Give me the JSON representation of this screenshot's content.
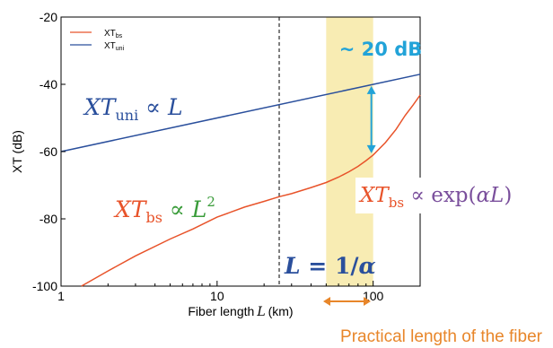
{
  "chart_data": {
    "type": "line",
    "x_scale": "log",
    "xlim": [
      1,
      200
    ],
    "ylim": [
      -100,
      -20
    ],
    "x_ticks": [
      "1",
      "10",
      "100"
    ],
    "y_ticks": [
      "-20",
      "-40",
      "-60",
      "-80",
      "-100"
    ],
    "xlabel": "Fiber length",
    "xlabel_var": "L",
    "xlabel_unit": "(km)",
    "ylabel": "XT (dB)",
    "legend": {
      "placement": "top-left",
      "entries": [
        {
          "base": "XT",
          "sub": "bs",
          "color": "#e8532a"
        },
        {
          "base": "XT",
          "sub": "uni",
          "color": "#2a4f9c"
        }
      ]
    },
    "series": [
      {
        "name": "XT_bs",
        "color": "#e8532a",
        "x": [
          1.35,
          2,
          3,
          5,
          7,
          10,
          15,
          20,
          25,
          30,
          40,
          50,
          60,
          70,
          80,
          90,
          100,
          120,
          140,
          160,
          180,
          200
        ],
        "y": [
          -100,
          -95.5,
          -91,
          -86,
          -83,
          -79.5,
          -76.5,
          -74.8,
          -73.4,
          -72.5,
          -70.7,
          -69.2,
          -67.6,
          -66.0,
          -64.4,
          -62.7,
          -61.0,
          -57.3,
          -53.4,
          -49.3,
          -46.2,
          -43.2
        ]
      },
      {
        "name": "XT_uni",
        "color": "#2a4f9c",
        "x": [
          1,
          200
        ],
        "y": [
          -60,
          -37
        ]
      }
    ],
    "vline": {
      "x": 25,
      "style": "dashed"
    },
    "shaded_band": {
      "x0": 50,
      "x1": 100,
      "color": "#f8ecb3"
    },
    "gap_arrow": {
      "x": 100,
      "y_top": -40.5,
      "y_bottom": -60.5,
      "color": "#22a3d8"
    }
  },
  "annotations": {
    "gap_label": "~ 20 dB",
    "uni_formula": {
      "var": "XT",
      "sub": "uni",
      "rel": " ∝ ",
      "rhs": "L"
    },
    "bs_left_formula": {
      "var": "XT",
      "sub": "bs",
      "rel": " ∝ ",
      "rhs": "L",
      "sup": "2"
    },
    "bs_right_formula": {
      "var": "XT",
      "sub": "bs",
      "rel": " ∝ ",
      "fn": "exp(",
      "arg": "αL",
      "close": ")"
    },
    "l_eq": {
      "lhs": "L",
      "eq": " = ",
      "num": "1",
      "slash": "/",
      "den": "α"
    },
    "practical_label": "Practical length of the fiber"
  },
  "colors": {
    "orange": "#e8532a",
    "blue": "#2a4f9c",
    "cyan": "#22a3d8",
    "green": "#3a9c3a",
    "purple": "#7a4f9c",
    "band": "#f8ecb3",
    "arrow_orange": "#e8862a"
  }
}
